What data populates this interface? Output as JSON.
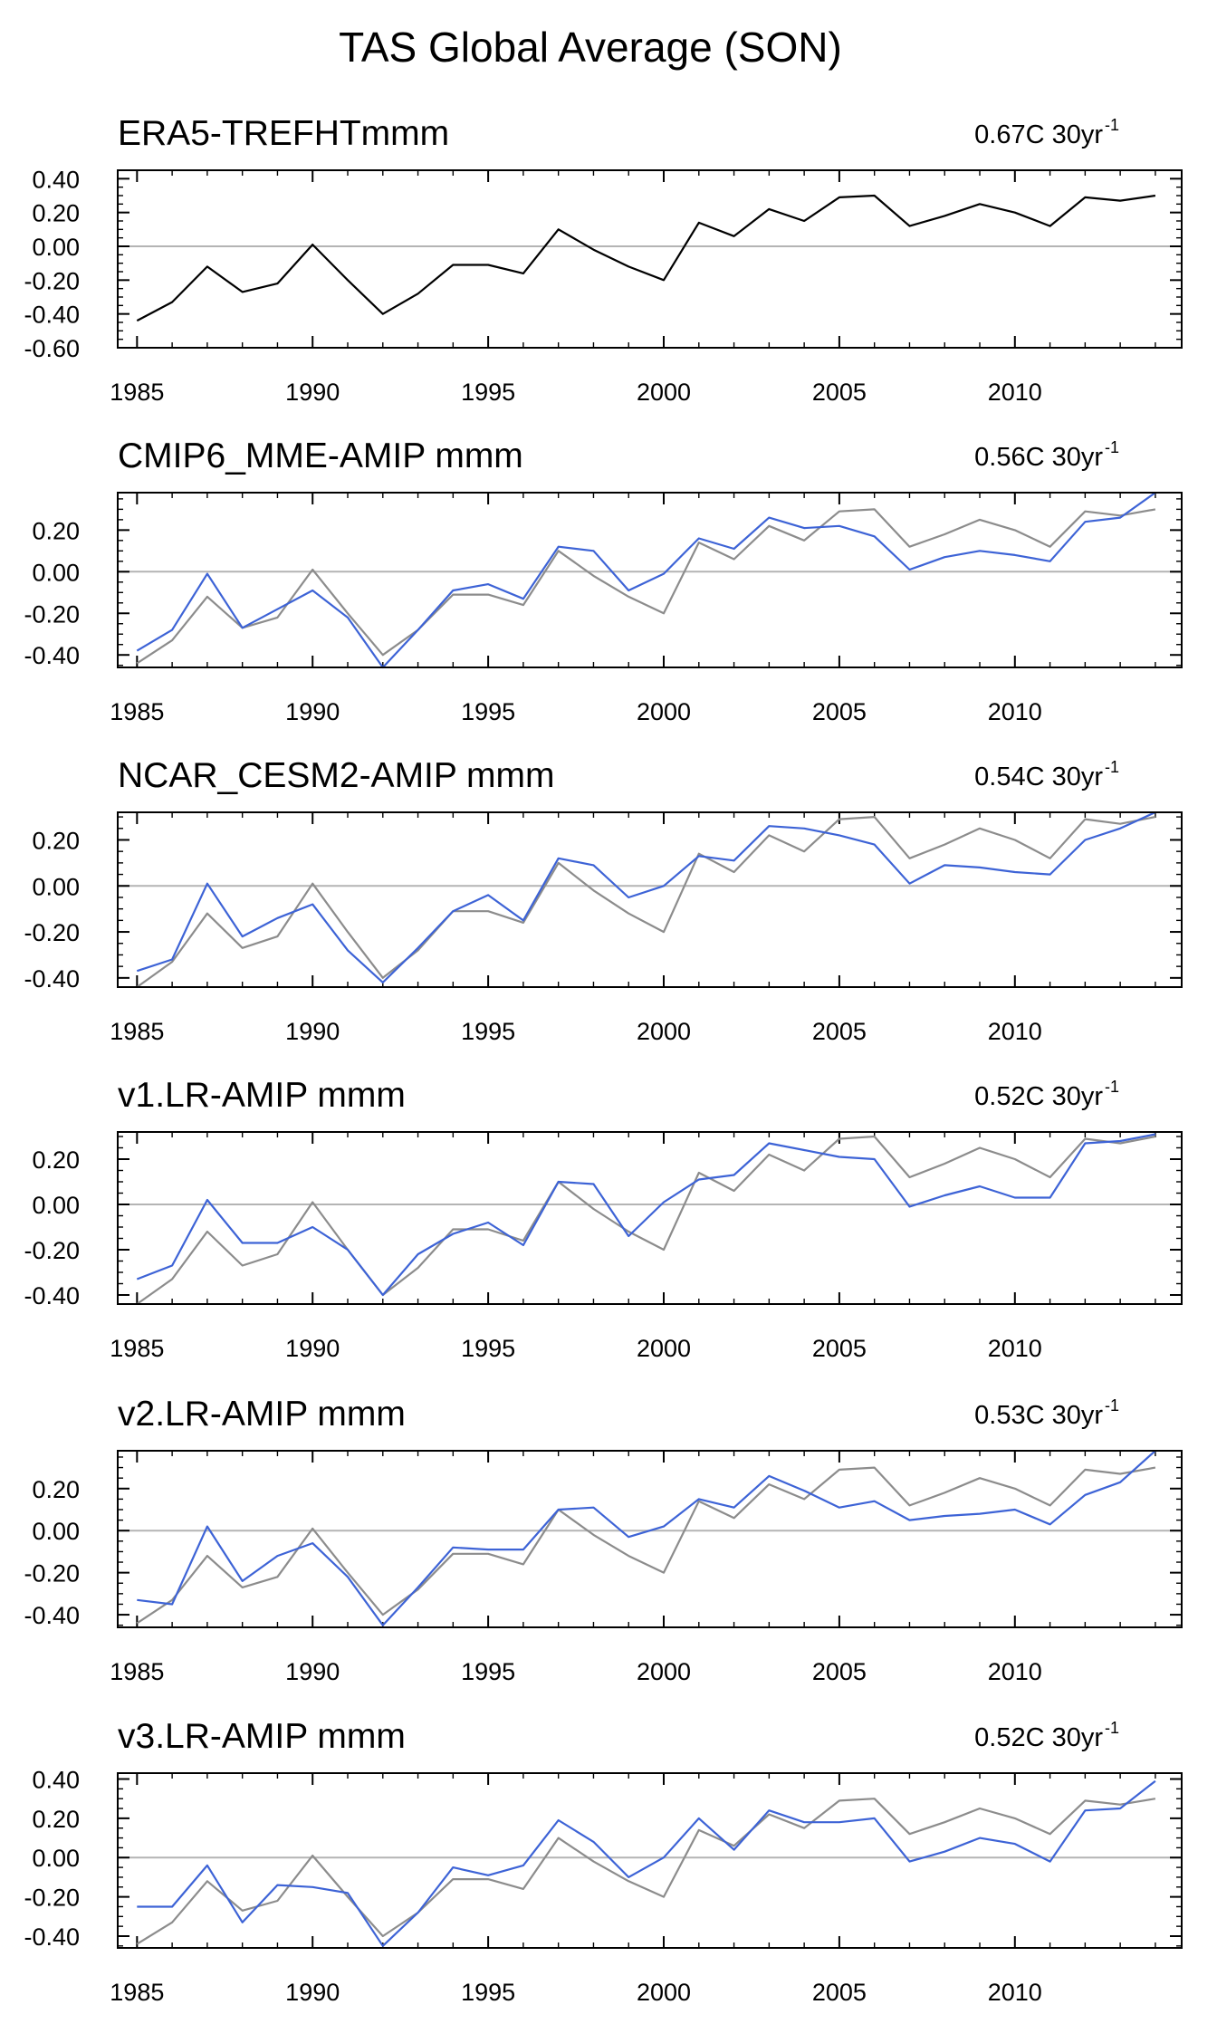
{
  "title": "TAS Global Average (SON)",
  "colors": {
    "reference": "#000000",
    "reference_overlay": "#8c8c8c",
    "model": "#3d63d6",
    "zero_line": "#b4b4b4",
    "frame": "#000000"
  },
  "chart_data": [
    {
      "type": "line",
      "title": "ERA5-TREFHTmmm",
      "trend_label": "0.67C 30yr",
      "trend_superscript": "-1",
      "ylim": [
        -0.6,
        0.45
      ],
      "yticks": [
        "0.40",
        "0.20",
        "0.00",
        "-0.20",
        "-0.40",
        "-0.60"
      ],
      "ytick_values": [
        0.4,
        0.2,
        0.0,
        -0.2,
        -0.4,
        -0.6
      ],
      "xticks": [
        1985,
        1990,
        1995,
        2000,
        2005,
        2010
      ],
      "x": [
        1985,
        1986,
        1987,
        1988,
        1989,
        1990,
        1991,
        1992,
        1993,
        1994,
        1995,
        1996,
        1997,
        1998,
        1999,
        2000,
        2001,
        2002,
        2003,
        2004,
        2005,
        2006,
        2007,
        2008,
        2009,
        2010,
        2011,
        2012,
        2013,
        2014
      ],
      "series": [
        {
          "name": "ERA5-TREFHT",
          "values": [
            -0.44,
            -0.33,
            -0.12,
            -0.27,
            -0.22,
            0.01,
            -0.2,
            -0.4,
            -0.28,
            -0.11,
            -0.11,
            -0.16,
            0.1,
            -0.02,
            -0.12,
            -0.2,
            0.14,
            0.06,
            0.22,
            0.15,
            0.29,
            0.3,
            0.12,
            0.18,
            0.25,
            0.2,
            0.12,
            0.29,
            0.27,
            0.3
          ]
        }
      ]
    },
    {
      "type": "line",
      "title": "CMIP6_MME-AMIP  mmm",
      "trend_label": "0.56C 30yr",
      "trend_superscript": "-1",
      "ylim": [
        -0.46,
        0.38
      ],
      "yticks": [
        "0.20",
        "0.00",
        "-0.20",
        "-0.40"
      ],
      "ytick_values": [
        0.2,
        0.0,
        -0.2,
        -0.4
      ],
      "xticks": [
        1985,
        1990,
        1995,
        2000,
        2005,
        2010
      ],
      "x": [
        1985,
        1986,
        1987,
        1988,
        1989,
        1990,
        1991,
        1992,
        1993,
        1994,
        1995,
        1996,
        1997,
        1998,
        1999,
        2000,
        2001,
        2002,
        2003,
        2004,
        2005,
        2006,
        2007,
        2008,
        2009,
        2010,
        2011,
        2012,
        2013,
        2014
      ],
      "series": [
        {
          "name": "ERA5-TREFHT",
          "values": [
            -0.44,
            -0.33,
            -0.12,
            -0.27,
            -0.22,
            0.01,
            -0.2,
            -0.4,
            -0.28,
            -0.11,
            -0.11,
            -0.16,
            0.1,
            -0.02,
            -0.12,
            -0.2,
            0.14,
            0.06,
            0.22,
            0.15,
            0.29,
            0.3,
            0.12,
            0.18,
            0.25,
            0.2,
            0.12,
            0.29,
            0.27,
            0.3
          ]
        },
        {
          "name": "CMIP6_MME-AMIP",
          "values": [
            -0.38,
            -0.28,
            -0.01,
            -0.27,
            -0.18,
            -0.09,
            -0.22,
            -0.46,
            -0.28,
            -0.09,
            -0.06,
            -0.13,
            0.12,
            0.1,
            -0.09,
            -0.01,
            0.16,
            0.11,
            0.26,
            0.21,
            0.22,
            0.17,
            0.01,
            0.07,
            0.1,
            0.08,
            0.05,
            0.24,
            0.26,
            0.38
          ]
        }
      ]
    },
    {
      "type": "line",
      "title": "NCAR_CESM2-AMIP  mmm",
      "trend_label": "0.54C 30yr",
      "trend_superscript": "-1",
      "ylim": [
        -0.44,
        0.32
      ],
      "yticks": [
        "0.20",
        "0.00",
        "-0.20",
        "-0.40"
      ],
      "ytick_values": [
        0.2,
        0.0,
        -0.2,
        -0.4
      ],
      "xticks": [
        1985,
        1990,
        1995,
        2000,
        2005,
        2010
      ],
      "x": [
        1985,
        1986,
        1987,
        1988,
        1989,
        1990,
        1991,
        1992,
        1993,
        1994,
        1995,
        1996,
        1997,
        1998,
        1999,
        2000,
        2001,
        2002,
        2003,
        2004,
        2005,
        2006,
        2007,
        2008,
        2009,
        2010,
        2011,
        2012,
        2013,
        2014
      ],
      "series": [
        {
          "name": "ERA5-TREFHT",
          "values": [
            -0.44,
            -0.33,
            -0.12,
            -0.27,
            -0.22,
            0.01,
            -0.2,
            -0.4,
            -0.28,
            -0.11,
            -0.11,
            -0.16,
            0.1,
            -0.02,
            -0.12,
            -0.2,
            0.14,
            0.06,
            0.22,
            0.15,
            0.29,
            0.3,
            0.12,
            0.18,
            0.25,
            0.2,
            0.12,
            0.29,
            0.27,
            0.3
          ]
        },
        {
          "name": "NCAR_CESM2-AMIP",
          "values": [
            -0.37,
            -0.32,
            0.01,
            -0.22,
            -0.14,
            -0.08,
            -0.28,
            -0.42,
            -0.27,
            -0.11,
            -0.04,
            -0.15,
            0.12,
            0.09,
            -0.05,
            0.0,
            0.13,
            0.11,
            0.26,
            0.25,
            0.22,
            0.18,
            0.01,
            0.09,
            0.08,
            0.06,
            0.05,
            0.2,
            0.25,
            0.32
          ]
        }
      ]
    },
    {
      "type": "line",
      "title": "v1.LR-AMIP  mmm",
      "trend_label": "0.52C 30yr",
      "trend_superscript": "-1",
      "ylim": [
        -0.44,
        0.32
      ],
      "yticks": [
        "0.20",
        "0.00",
        "-0.20",
        "-0.40"
      ],
      "ytick_values": [
        0.2,
        0.0,
        -0.2,
        -0.4
      ],
      "xticks": [
        1985,
        1990,
        1995,
        2000,
        2005,
        2010
      ],
      "x": [
        1985,
        1986,
        1987,
        1988,
        1989,
        1990,
        1991,
        1992,
        1993,
        1994,
        1995,
        1996,
        1997,
        1998,
        1999,
        2000,
        2001,
        2002,
        2003,
        2004,
        2005,
        2006,
        2007,
        2008,
        2009,
        2010,
        2011,
        2012,
        2013,
        2014
      ],
      "series": [
        {
          "name": "ERA5-TREFHT",
          "values": [
            -0.44,
            -0.33,
            -0.12,
            -0.27,
            -0.22,
            0.01,
            -0.2,
            -0.4,
            -0.28,
            -0.11,
            -0.11,
            -0.16,
            0.1,
            -0.02,
            -0.12,
            -0.2,
            0.14,
            0.06,
            0.22,
            0.15,
            0.29,
            0.3,
            0.12,
            0.18,
            0.25,
            0.2,
            0.12,
            0.29,
            0.27,
            0.3
          ]
        },
        {
          "name": "v1.LR-AMIP",
          "values": [
            -0.33,
            -0.27,
            0.02,
            -0.17,
            -0.17,
            -0.1,
            -0.2,
            -0.4,
            -0.22,
            -0.13,
            -0.08,
            -0.18,
            0.1,
            0.09,
            -0.14,
            0.01,
            0.11,
            0.13,
            0.27,
            0.24,
            0.21,
            0.2,
            -0.01,
            0.04,
            0.08,
            0.03,
            0.03,
            0.27,
            0.28,
            0.31
          ]
        }
      ]
    },
    {
      "type": "line",
      "title": "v2.LR-AMIP  mmm",
      "trend_label": "0.53C 30yr",
      "trend_superscript": "-1",
      "ylim": [
        -0.46,
        0.38
      ],
      "yticks": [
        "0.20",
        "0.00",
        "-0.20",
        "-0.40"
      ],
      "ytick_values": [
        0.2,
        0.0,
        -0.2,
        -0.4
      ],
      "xticks": [
        1985,
        1990,
        1995,
        2000,
        2005,
        2010
      ],
      "x": [
        1985,
        1986,
        1987,
        1988,
        1989,
        1990,
        1991,
        1992,
        1993,
        1994,
        1995,
        1996,
        1997,
        1998,
        1999,
        2000,
        2001,
        2002,
        2003,
        2004,
        2005,
        2006,
        2007,
        2008,
        2009,
        2010,
        2011,
        2012,
        2013,
        2014
      ],
      "series": [
        {
          "name": "ERA5-TREFHT",
          "values": [
            -0.44,
            -0.33,
            -0.12,
            -0.27,
            -0.22,
            0.01,
            -0.2,
            -0.4,
            -0.28,
            -0.11,
            -0.11,
            -0.16,
            0.1,
            -0.02,
            -0.12,
            -0.2,
            0.14,
            0.06,
            0.22,
            0.15,
            0.29,
            0.3,
            0.12,
            0.18,
            0.25,
            0.2,
            0.12,
            0.29,
            0.27,
            0.3
          ]
        },
        {
          "name": "v2.LR-AMIP",
          "values": [
            -0.33,
            -0.35,
            0.02,
            -0.24,
            -0.12,
            -0.06,
            -0.22,
            -0.45,
            -0.27,
            -0.08,
            -0.09,
            -0.09,
            0.1,
            0.11,
            -0.03,
            0.02,
            0.15,
            0.11,
            0.26,
            0.19,
            0.11,
            0.14,
            0.05,
            0.07,
            0.08,
            0.1,
            0.03,
            0.17,
            0.23,
            0.38
          ]
        }
      ]
    },
    {
      "type": "line",
      "title": "v3.LR-AMIP  mmm",
      "trend_label": "0.52C 30yr",
      "trend_superscript": "-1",
      "ylim": [
        -0.46,
        0.43
      ],
      "yticks": [
        "0.40",
        "0.20",
        "0.00",
        "-0.20",
        "-0.40"
      ],
      "ytick_values": [
        0.4,
        0.2,
        0.0,
        -0.2,
        -0.4
      ],
      "xticks": [
        1985,
        1990,
        1995,
        2000,
        2005,
        2010
      ],
      "x": [
        1985,
        1986,
        1987,
        1988,
        1989,
        1990,
        1991,
        1992,
        1993,
        1994,
        1995,
        1996,
        1997,
        1998,
        1999,
        2000,
        2001,
        2002,
        2003,
        2004,
        2005,
        2006,
        2007,
        2008,
        2009,
        2010,
        2011,
        2012,
        2013,
        2014
      ],
      "series": [
        {
          "name": "ERA5-TREFHT",
          "values": [
            -0.44,
            -0.33,
            -0.12,
            -0.27,
            -0.22,
            0.01,
            -0.2,
            -0.4,
            -0.28,
            -0.11,
            -0.11,
            -0.16,
            0.1,
            -0.02,
            -0.12,
            -0.2,
            0.14,
            0.06,
            0.22,
            0.15,
            0.29,
            0.3,
            0.12,
            0.18,
            0.25,
            0.2,
            0.12,
            0.29,
            0.27,
            0.3
          ]
        },
        {
          "name": "v3.LR-AMIP",
          "values": [
            -0.25,
            -0.25,
            -0.04,
            -0.33,
            -0.14,
            -0.15,
            -0.18,
            -0.45,
            -0.28,
            -0.05,
            -0.09,
            -0.04,
            0.19,
            0.08,
            -0.1,
            0.0,
            0.2,
            0.04,
            0.24,
            0.18,
            0.18,
            0.2,
            -0.02,
            0.03,
            0.1,
            0.07,
            -0.02,
            0.24,
            0.25,
            0.39
          ]
        }
      ]
    }
  ]
}
